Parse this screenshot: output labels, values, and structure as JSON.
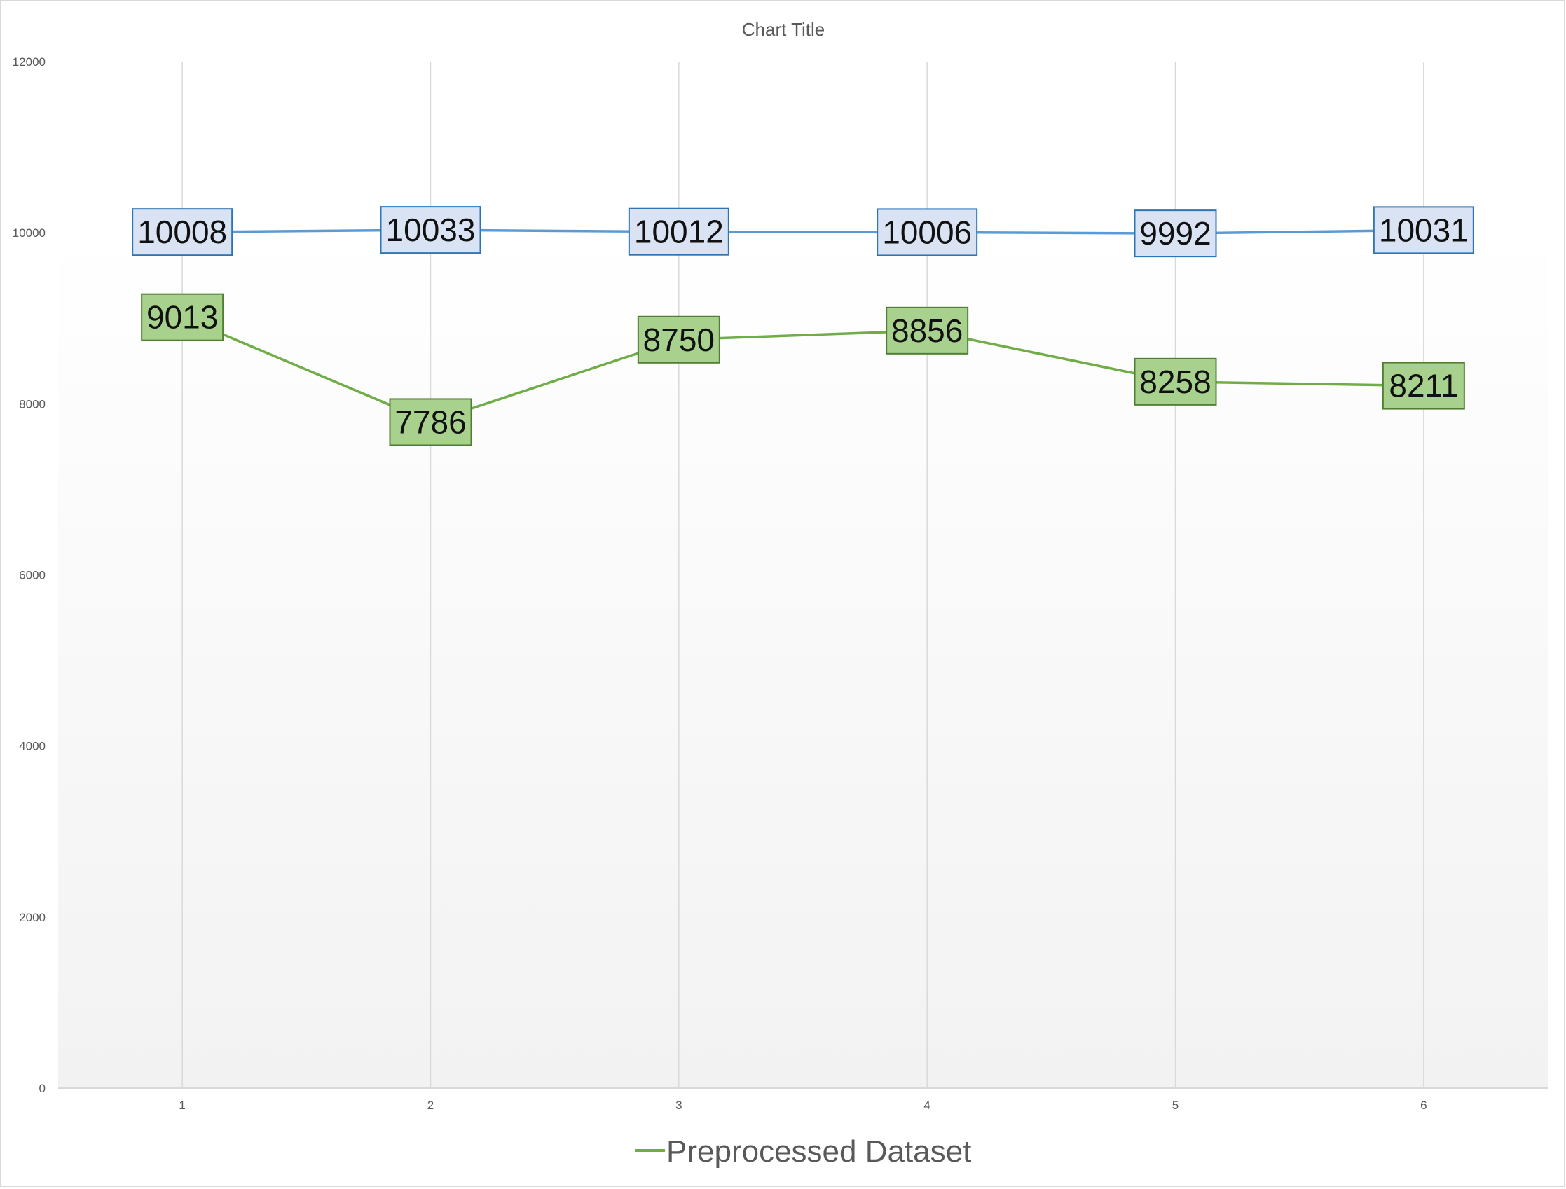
{
  "chart_data": {
    "type": "line",
    "title": "Chart Title",
    "xlabel": "",
    "ylabel": "",
    "categories": [
      "1",
      "2",
      "3",
      "4",
      "5",
      "6"
    ],
    "ylim": [
      0,
      12000
    ],
    "yticks": [
      "0",
      "2000",
      "4000",
      "6000",
      "8000",
      "10000",
      "12000"
    ],
    "grid": "vertical",
    "legend_position": "bottom",
    "series": [
      {
        "values": [
          10008,
          10033,
          10012,
          10006,
          9992,
          10031
        ],
        "labels": [
          "10008",
          "10033",
          "10012",
          "10006",
          "9992",
          "10031"
        ],
        "color": "#5b9bd5",
        "label_fill": "#dae3f3",
        "label_border": "#2e75b6",
        "in_legend": false
      },
      {
        "name": "Preprocessed Dataset",
        "values": [
          9013,
          7786,
          8750,
          8856,
          8258,
          8211
        ],
        "labels": [
          "9013",
          "7786",
          "8750",
          "8856",
          "8258",
          "8211"
        ],
        "color": "#70ad47",
        "label_fill": "#a9d18e",
        "label_border": "#507e32",
        "in_legend": true
      }
    ]
  }
}
